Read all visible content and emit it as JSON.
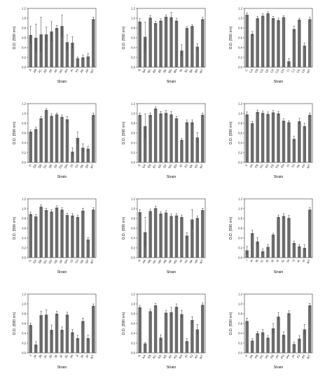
{
  "chart_data": [
    {
      "type": "bar",
      "xlabel": "Strain",
      "ylabel": "O.D. (590 nm)",
      "ylim": [
        0,
        1.2
      ],
      "yticks": [
        "0.0",
        "0.2",
        "0.4",
        "0.6",
        "0.8",
        "1.0",
        "1.2"
      ],
      "colors": {
        "bar": "#6b6b6b",
        "error": "#333333"
      },
      "categories": [
        "A",
        "AB",
        "AC",
        "AD",
        "AE",
        "AF",
        "AG",
        "AH",
        "AI",
        "AJ",
        "AK",
        "AP",
        "WT"
      ],
      "values": [
        0.66,
        0.6,
        0.67,
        0.67,
        0.73,
        0.8,
        0.84,
        0.51,
        0.5,
        0.18,
        0.2,
        0.22,
        0.98
      ],
      "errors": [
        0.18,
        0.28,
        0.35,
        0.15,
        0.2,
        0.05,
        0.22,
        0.15,
        0.12,
        0.03,
        0.05,
        0.06,
        0.04
      ]
    },
    {
      "type": "bar",
      "xlabel": "Strain",
      "ylabel": "O.D. (590 nm)",
      "ylim": [
        0,
        1.2
      ],
      "yticks": [
        "0.0",
        "0.2",
        "0.4",
        "0.6",
        "0.8",
        "1.0",
        "1.2"
      ],
      "colors": {
        "bar": "#6b6b6b",
        "error": "#333333"
      },
      "categories": [
        "B",
        "BA",
        "BC",
        "BD",
        "BE",
        "BF",
        "BG",
        "BH",
        "BI",
        "BJ",
        "BK",
        "BP",
        "WT"
      ],
      "values": [
        0.93,
        0.62,
        1.01,
        0.9,
        0.95,
        1.03,
        1.02,
        0.95,
        0.34,
        0.8,
        0.84,
        0.42,
        0.98
      ],
      "errors": [
        0.06,
        0.3,
        0.04,
        0.04,
        0.04,
        0.04,
        0.1,
        0.05,
        0.12,
        0.03,
        0.03,
        0.06,
        0.04
      ]
    },
    {
      "type": "bar",
      "xlabel": "Strain",
      "ylabel": "O.D. (590 nm)",
      "ylim": [
        0,
        1.2
      ],
      "yticks": [
        "0.0",
        "0.2",
        "0.4",
        "0.6",
        "0.8",
        "1.0",
        "1.2"
      ],
      "colors": {
        "bar": "#6b6b6b",
        "error": "#333333"
      },
      "categories": [
        "C",
        "CA",
        "CB",
        "CD",
        "CE",
        "CF",
        "CG",
        "CH",
        "CI",
        "CJ",
        "CK",
        "CP",
        "WT"
      ],
      "values": [
        1.07,
        0.68,
        1.0,
        1.05,
        1.1,
        1.0,
        0.96,
        1.02,
        0.12,
        0.78,
        0.97,
        0.44,
        0.98
      ],
      "errors": [
        0.04,
        0.05,
        0.04,
        0.04,
        0.03,
        0.04,
        0.04,
        0.03,
        0.06,
        0.06,
        0.03,
        0.05,
        0.04
      ]
    },
    {
      "type": "bar",
      "xlabel": "Strain",
      "ylabel": "O.D. (590 nm)",
      "ylim": [
        0,
        1.2
      ],
      "yticks": [
        "0.0",
        "0.2",
        "0.4",
        "0.6",
        "0.8",
        "1.0",
        "1.2"
      ],
      "colors": {
        "bar": "#6b6b6b",
        "error": "#333333"
      },
      "categories": [
        "D",
        "DA",
        "DB",
        "DC",
        "DE",
        "DF",
        "DG",
        "DH",
        "DI",
        "DJ",
        "DK",
        "DP",
        "WT"
      ],
      "values": [
        0.63,
        0.68,
        0.9,
        1.07,
        0.95,
        0.98,
        0.93,
        0.88,
        0.22,
        0.5,
        0.3,
        0.28,
        0.97
      ],
      "errors": [
        0.04,
        0.04,
        0.04,
        0.03,
        0.04,
        0.03,
        0.04,
        0.06,
        0.08,
        0.12,
        0.08,
        0.05,
        0.04
      ]
    },
    {
      "type": "bar",
      "xlabel": "Strain",
      "ylabel": "O.D. (590 nm)",
      "ylim": [
        0,
        1.2
      ],
      "yticks": [
        "0.0",
        "0.2",
        "0.4",
        "0.6",
        "0.8",
        "1.0",
        "1.2"
      ],
      "colors": {
        "bar": "#6b6b6b",
        "error": "#333333"
      },
      "categories": [
        "E",
        "EA",
        "EB",
        "EC",
        "ED",
        "EF",
        "EG",
        "EH",
        "EI",
        "EJ",
        "EK",
        "EP",
        "WT"
      ],
      "values": [
        0.97,
        0.74,
        0.97,
        1.1,
        1.0,
        1.01,
        0.98,
        0.9,
        0.46,
        0.82,
        0.82,
        0.51,
        0.97
      ],
      "errors": [
        0.04,
        0.25,
        0.04,
        0.03,
        0.04,
        0.05,
        0.06,
        0.04,
        0.03,
        0.05,
        0.05,
        0.1,
        0.04
      ]
    },
    {
      "type": "bar",
      "xlabel": "Strain",
      "ylabel": "O.D. (590 nm)",
      "ylim": [
        0,
        1.2
      ],
      "yticks": [
        "0.0",
        "0.2",
        "0.4",
        "0.6",
        "0.8",
        "1.0",
        "1.2"
      ],
      "colors": {
        "bar": "#6b6b6b",
        "error": "#333333"
      },
      "categories": [
        "F",
        "FA",
        "FB",
        "FC",
        "FD",
        "FE",
        "FG",
        "FH",
        "FI",
        "FJ",
        "FK",
        "FP",
        "WT"
      ],
      "values": [
        0.98,
        0.8,
        1.03,
        1.01,
        0.99,
        1.02,
        1.0,
        0.85,
        0.82,
        0.48,
        0.84,
        0.74,
        0.97
      ],
      "errors": [
        0.05,
        0.04,
        0.04,
        0.04,
        0.04,
        0.04,
        0.04,
        0.04,
        0.03,
        0.06,
        0.06,
        0.06,
        0.04
      ]
    },
    {
      "type": "bar",
      "xlabel": "Strain",
      "ylabel": "O.D. (590 nm)",
      "ylim": [
        0,
        1.2
      ],
      "yticks": [
        "0.0",
        "0.2",
        "0.4",
        "0.6",
        "0.8",
        "1.0",
        "1.2"
      ],
      "colors": {
        "bar": "#6b6b6b",
        "error": "#333333"
      },
      "categories": [
        "G",
        "GA",
        "GB",
        "GC",
        "GD",
        "GE",
        "GF",
        "GH",
        "GI",
        "GJ",
        "GK",
        "GP",
        "WT"
      ],
      "values": [
        0.89,
        0.84,
        1.04,
        0.97,
        0.94,
        1.02,
        0.98,
        0.87,
        0.86,
        0.83,
        0.96,
        0.37,
        0.98
      ],
      "errors": [
        0.04,
        0.04,
        0.04,
        0.04,
        0.04,
        0.04,
        0.04,
        0.04,
        0.04,
        0.04,
        0.05,
        0.04,
        0.04
      ]
    },
    {
      "type": "bar",
      "xlabel": "Strain",
      "ylabel": "O.D. (590 nm)",
      "ylim": [
        0,
        1.2
      ],
      "yticks": [
        "0.0",
        "0.2",
        "0.4",
        "0.6",
        "0.8",
        "1.0",
        "1.2"
      ],
      "colors": {
        "bar": "#6b6b6b",
        "error": "#333333"
      },
      "categories": [
        "H",
        "HA",
        "HB",
        "HC",
        "HD",
        "HE",
        "HF",
        "HG",
        "HI",
        "HJ",
        "HK",
        "HP",
        "WT"
      ],
      "values": [
        0.93,
        0.52,
        0.95,
        1.01,
        0.9,
        0.92,
        0.85,
        0.86,
        0.83,
        0.45,
        0.78,
        0.81,
        0.97
      ],
      "errors": [
        0.05,
        0.3,
        0.04,
        0.04,
        0.04,
        0.04,
        0.04,
        0.04,
        0.04,
        0.06,
        0.2,
        0.04,
        0.04
      ]
    },
    {
      "type": "bar",
      "xlabel": "Strain",
      "ylabel": "O.D. (590 nm)",
      "ylim": [
        0,
        1.2
      ],
      "yticks": [
        "0.0",
        "0.2",
        "0.4",
        "0.6",
        "0.8",
        "1.0",
        "1.2"
      ],
      "colors": {
        "bar": "#6b6b6b",
        "error": "#333333"
      },
      "categories": [
        "I",
        "IA",
        "IB",
        "IC",
        "ID",
        "IE",
        "IF",
        "IG",
        "IH",
        "IJ",
        "IK",
        "IP",
        "WT"
      ],
      "values": [
        0.15,
        0.5,
        0.33,
        0.13,
        0.22,
        0.47,
        0.83,
        0.85,
        0.81,
        0.3,
        0.23,
        0.2,
        0.98
      ],
      "errors": [
        0.08,
        0.06,
        0.08,
        0.05,
        0.05,
        0.03,
        0.04,
        0.05,
        0.05,
        0.04,
        0.04,
        0.06,
        0.04
      ]
    },
    {
      "type": "bar",
      "xlabel": "Strain",
      "ylabel": "O.D. (590 nm)",
      "ylim": [
        0,
        1.2
      ],
      "yticks": [
        "0.0",
        "0.2",
        "0.4",
        "0.6",
        "0.8",
        "1.0",
        "1.2"
      ],
      "colors": {
        "bar": "#6b6b6b",
        "error": "#333333"
      },
      "categories": [
        "J",
        "JA",
        "JB",
        "JC",
        "JD",
        "JE",
        "JF",
        "JG",
        "JH",
        "JI",
        "JK",
        "JP",
        "WT"
      ],
      "values": [
        0.57,
        0.17,
        0.77,
        0.78,
        0.47,
        0.8,
        0.47,
        0.78,
        0.42,
        0.3,
        0.65,
        0.3,
        0.96
      ],
      "errors": [
        0.04,
        0.06,
        0.08,
        0.1,
        0.1,
        0.05,
        0.06,
        0.05,
        0.06,
        0.06,
        0.06,
        0.06,
        0.04
      ]
    },
    {
      "type": "bar",
      "xlabel": "Strain",
      "ylabel": "O.D. (590 nm)",
      "ylim": [
        0,
        1.2
      ],
      "yticks": [
        "0.0",
        "0.2",
        "0.4",
        "0.6",
        "0.8",
        "1.0",
        "1.2"
      ],
      "colors": {
        "bar": "#6b6b6b",
        "error": "#333333"
      },
      "categories": [
        "K",
        "KA",
        "KB",
        "KC",
        "KD",
        "KE",
        "KF",
        "KG",
        "KH",
        "KI",
        "KJ",
        "KP",
        "WT"
      ],
      "values": [
        0.93,
        0.19,
        0.85,
        0.97,
        0.31,
        0.82,
        0.83,
        0.94,
        0.79,
        0.24,
        0.67,
        0.48,
        0.98
      ],
      "errors": [
        0.04,
        0.02,
        0.04,
        0.04,
        0.06,
        0.05,
        0.1,
        0.06,
        0.08,
        0.05,
        0.07,
        0.1,
        0.04
      ]
    },
    {
      "type": "bar",
      "xlabel": "Strain",
      "ylabel": "O.D. (590 nm)",
      "ylim": [
        0,
        1.2
      ],
      "yticks": [
        "0.0",
        "0.2",
        "0.4",
        "0.6",
        "0.8",
        "1.0",
        "1.2"
      ],
      "colors": {
        "bar": "#6b6b6b",
        "error": "#333333"
      },
      "categories": [
        "P",
        "PA",
        "PB",
        "PC",
        "PD",
        "PE",
        "PF",
        "PG",
        "PH",
        "PI",
        "PJ",
        "PK",
        "WT"
      ],
      "values": [
        0.65,
        0.25,
        0.4,
        0.42,
        0.31,
        0.5,
        0.74,
        0.37,
        0.81,
        0.18,
        0.29,
        0.48,
        0.97
      ],
      "errors": [
        0.06,
        0.04,
        0.04,
        0.06,
        0.04,
        0.1,
        0.08,
        0.06,
        0.05,
        0.04,
        0.06,
        0.1,
        0.04
      ]
    }
  ]
}
